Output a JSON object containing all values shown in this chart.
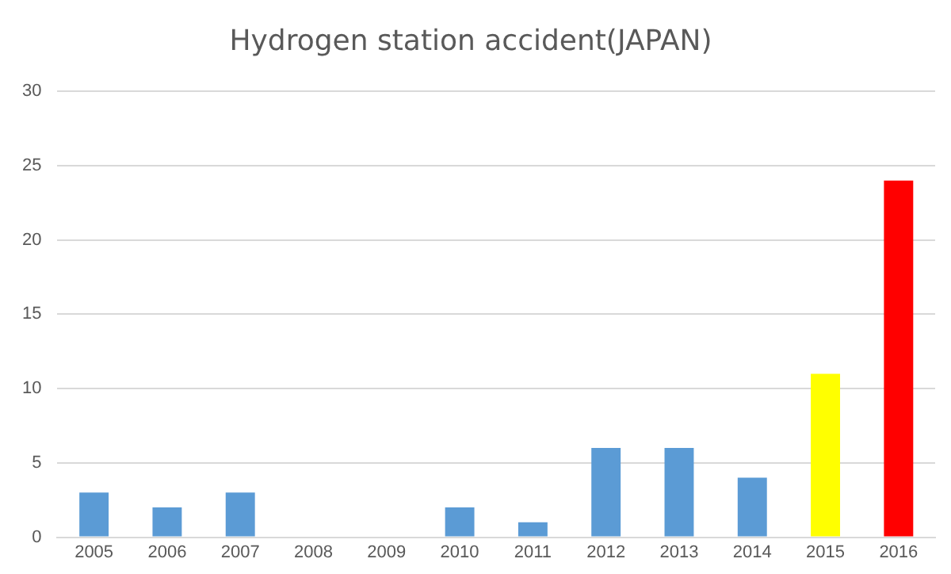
{
  "chart_data": {
    "type": "bar",
    "title": "Hydrogen station accident(JAPAN)",
    "categories": [
      "2005",
      "2006",
      "2007",
      "2008",
      "2009",
      "2010",
      "2011",
      "2012",
      "2013",
      "2014",
      "2015",
      "2016"
    ],
    "values": [
      3,
      2,
      3,
      0,
      0,
      2,
      1,
      6,
      6,
      4,
      11,
      24
    ],
    "colors": [
      "#5b9bd5",
      "#5b9bd5",
      "#5b9bd5",
      "#5b9bd5",
      "#5b9bd5",
      "#5b9bd5",
      "#5b9bd5",
      "#5b9bd5",
      "#5b9bd5",
      "#5b9bd5",
      "#ffff00",
      "#ff0000"
    ],
    "ylim": [
      0,
      30
    ],
    "yticks": [
      0,
      5,
      10,
      15,
      20,
      25,
      30
    ],
    "grid": "y",
    "legend": false
  }
}
